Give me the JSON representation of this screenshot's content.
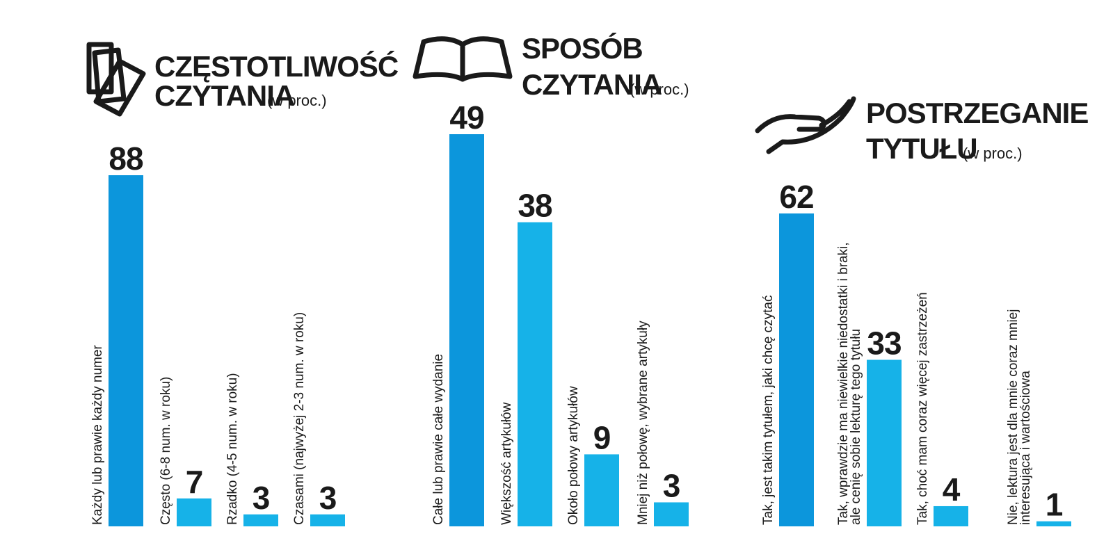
{
  "chart_data": [
    {
      "type": "bar",
      "icon": "sheets-icon",
      "title_lines": [
        "CZĘSTOTLIWOŚĆ",
        "CZYTANIA"
      ],
      "title_unit": "(w proc.)",
      "categories": [
        [
          "Każdy lub prawie każdy numer"
        ],
        [
          "Często (6-8 num. w roku)"
        ],
        [
          "Rzadko (4-5 num. w roku)"
        ],
        [
          "Czasami (najwyżej 2-3 num. w roku)"
        ]
      ],
      "values": [
        88,
        7,
        3,
        3
      ],
      "value_labels": [
        "88",
        "7",
        "3",
        "3"
      ],
      "colors": [
        "#0c96dc",
        "#16b2e8",
        "#16b2e8",
        "#16b2e8"
      ],
      "ylim": [
        0,
        88
      ]
    },
    {
      "type": "bar",
      "icon": "open-book-icon",
      "title_lines": [
        "SPOSÓB",
        "CZYTANIA"
      ],
      "title_unit": "(w proc.)",
      "categories": [
        [
          "Całe lub prawie całe wydanie"
        ],
        [
          "Większość artykułów"
        ],
        [
          "Około połowy artykułów"
        ],
        [
          "Mniej niż połowę, wybrane artykuły"
        ]
      ],
      "values": [
        49,
        38,
        9,
        3
      ],
      "value_labels": [
        "49",
        "38",
        "9",
        "3"
      ],
      "colors": [
        "#0c96dc",
        "#16b2e8",
        "#16b2e8",
        "#16b2e8"
      ],
      "ylim": [
        0,
        49
      ]
    },
    {
      "type": "bar",
      "icon": "hand-icon",
      "title_lines": [
        "POSTRZEGANIE",
        "TYTUŁU"
      ],
      "title_unit": "(w proc.)",
      "categories": [
        [
          "Tak, jest takim tytułem, jaki chcę czytać"
        ],
        [
          "Tak, wprawdzie ma niewielkie niedostatki i braki,",
          "ale cenię sobie lekturę tego tytułu"
        ],
        [
          "Tak, choć mam coraz więcej zastrzeżeń"
        ],
        [
          "Nie, lektura  jest dla mnie coraz mniej",
          "interesująca i wartościowa"
        ]
      ],
      "values": [
        62,
        33,
        4,
        1
      ],
      "value_labels": [
        "62",
        "33",
        "4",
        "1"
      ],
      "colors": [
        "#0c96dc",
        "#16b2e8",
        "#16b2e8",
        "#16b2e8"
      ],
      "ylim": [
        0,
        62
      ]
    }
  ]
}
